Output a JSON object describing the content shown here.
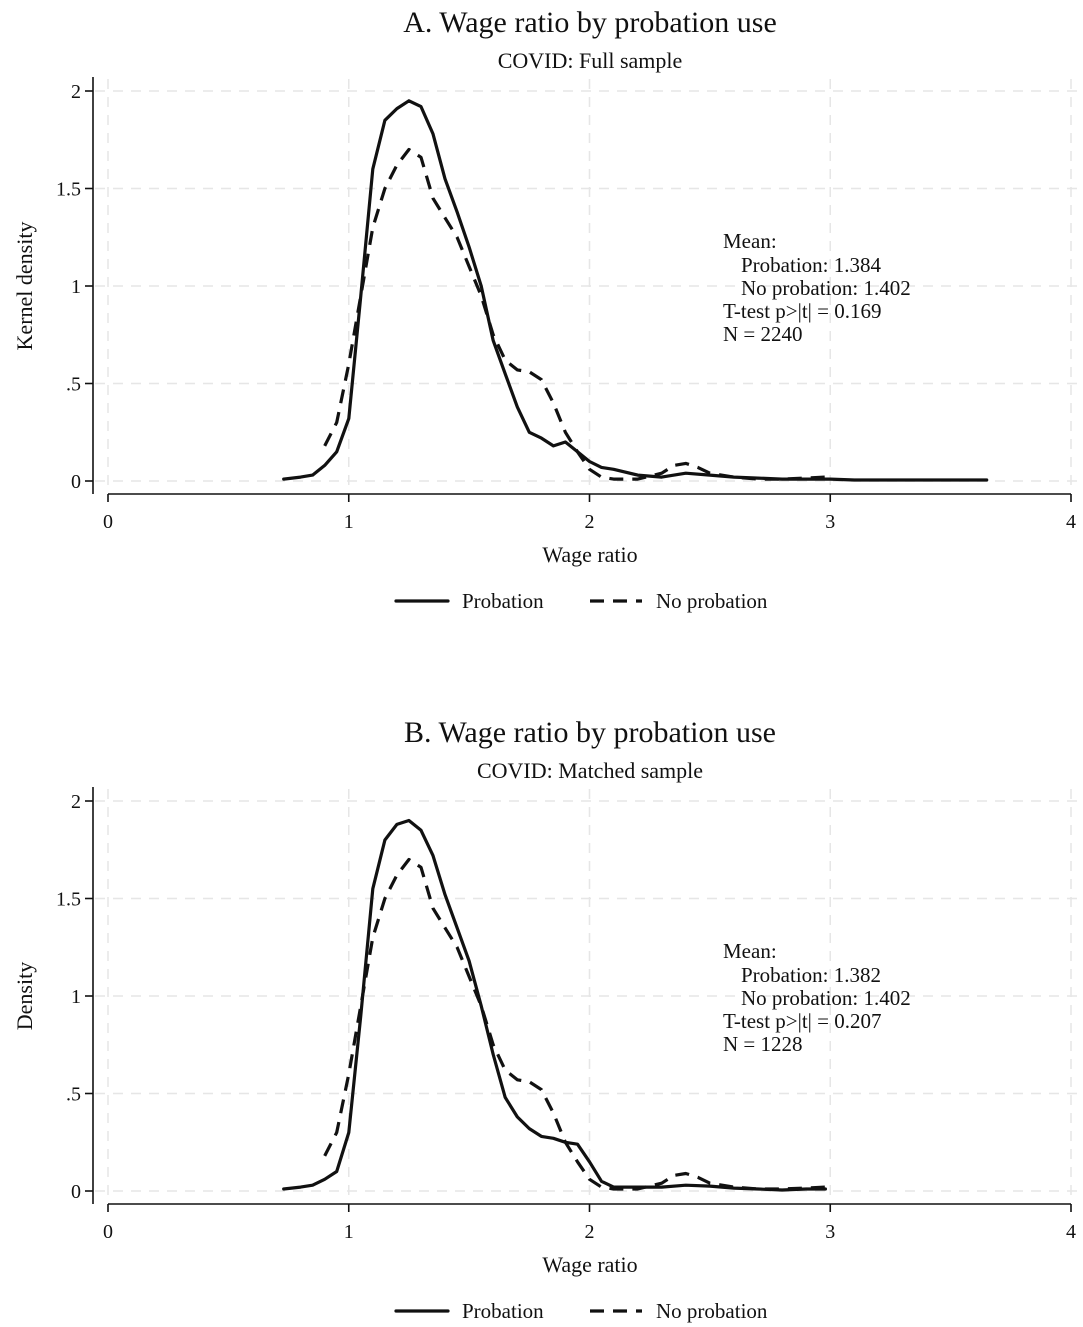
{
  "chart_data": [
    {
      "type": "line",
      "title": "A. Wage ratio by probation use",
      "subtitle": "COVID: Full sample",
      "xlabel": "Wage ratio",
      "ylabel": "Kernel density",
      "xlim": [
        0,
        4
      ],
      "ylim": [
        0,
        2
      ],
      "xticks": [
        0,
        1,
        2,
        3,
        4
      ],
      "xtick_labels": [
        "0",
        "1",
        "2",
        "3",
        "4"
      ],
      "yticks": [
        0,
        0.5,
        1,
        1.5,
        2
      ],
      "ytick_labels": [
        "0",
        ".5",
        "1",
        "1.5",
        "2"
      ],
      "grid": true,
      "legend": [
        "Probation",
        "No probation"
      ],
      "legend_position": "bottom",
      "annotation": [
        "Mean:",
        "Probation: 1.384",
        "No probation: 1.402",
        "T-test p>|t| = 0.169",
        "N = 2240"
      ],
      "series": [
        {
          "name": "Probation",
          "style": "solid",
          "x": [
            0.73,
            0.8,
            0.85,
            0.9,
            0.95,
            1.0,
            1.05,
            1.1,
            1.15,
            1.2,
            1.25,
            1.3,
            1.35,
            1.4,
            1.45,
            1.5,
            1.55,
            1.6,
            1.65,
            1.7,
            1.75,
            1.8,
            1.85,
            1.9,
            1.95,
            2.0,
            2.05,
            2.1,
            2.2,
            2.3,
            2.4,
            2.5,
            2.6,
            2.7,
            2.8,
            2.9,
            3.0,
            3.1,
            3.3,
            3.5,
            3.65
          ],
          "y": [
            0.01,
            0.02,
            0.03,
            0.08,
            0.15,
            0.32,
            0.95,
            1.6,
            1.85,
            1.91,
            1.95,
            1.92,
            1.78,
            1.55,
            1.38,
            1.2,
            1.0,
            0.72,
            0.55,
            0.38,
            0.25,
            0.22,
            0.18,
            0.2,
            0.15,
            0.1,
            0.07,
            0.06,
            0.03,
            0.02,
            0.04,
            0.03,
            0.02,
            0.015,
            0.01,
            0.01,
            0.01,
            0.005,
            0.005,
            0.005,
            0.005
          ]
        },
        {
          "name": "No probation",
          "style": "dashed",
          "x": [
            0.9,
            0.95,
            1.0,
            1.05,
            1.1,
            1.15,
            1.2,
            1.25,
            1.3,
            1.35,
            1.4,
            1.45,
            1.5,
            1.55,
            1.6,
            1.65,
            1.7,
            1.75,
            1.8,
            1.85,
            1.9,
            1.95,
            2.0,
            2.05,
            2.1,
            2.2,
            2.3,
            2.35,
            2.4,
            2.45,
            2.5,
            2.6,
            2.7,
            2.8,
            2.9,
            2.98
          ],
          "y": [
            0.18,
            0.3,
            0.6,
            0.95,
            1.3,
            1.5,
            1.62,
            1.7,
            1.66,
            1.45,
            1.35,
            1.25,
            1.1,
            0.95,
            0.75,
            0.62,
            0.57,
            0.56,
            0.52,
            0.4,
            0.25,
            0.15,
            0.06,
            0.02,
            0.01,
            0.01,
            0.04,
            0.08,
            0.09,
            0.07,
            0.04,
            0.02,
            0.01,
            0.01,
            0.015,
            0.02
          ]
        }
      ]
    },
    {
      "type": "line",
      "title": "B. Wage ratio by probation use",
      "subtitle": "COVID: Matched sample",
      "xlabel": "Wage ratio",
      "ylabel": "Density",
      "xlim": [
        0,
        4
      ],
      "ylim": [
        0,
        2
      ],
      "xticks": [
        0,
        1,
        2,
        3,
        4
      ],
      "xtick_labels": [
        "0",
        "1",
        "2",
        "3",
        "4"
      ],
      "yticks": [
        0,
        0.5,
        1,
        1.5,
        2
      ],
      "ytick_labels": [
        "0",
        ".5",
        "1",
        "1.5",
        "2"
      ],
      "grid": true,
      "legend": [
        "Probation",
        "No probation"
      ],
      "legend_position": "bottom",
      "annotation": [
        "Mean:",
        "Probation: 1.382",
        "No probation: 1.402",
        "T-test p>|t| = 0.207",
        "N = 1228"
      ],
      "series": [
        {
          "name": "Probation",
          "style": "solid",
          "x": [
            0.73,
            0.8,
            0.85,
            0.9,
            0.95,
            1.0,
            1.05,
            1.1,
            1.15,
            1.2,
            1.25,
            1.3,
            1.35,
            1.4,
            1.45,
            1.5,
            1.55,
            1.6,
            1.65,
            1.7,
            1.75,
            1.8,
            1.85,
            1.9,
            1.95,
            2.0,
            2.05,
            2.1,
            2.2,
            2.3,
            2.4,
            2.5,
            2.6,
            2.7,
            2.8,
            2.9,
            2.98
          ],
          "y": [
            0.01,
            0.02,
            0.03,
            0.06,
            0.1,
            0.3,
            0.9,
            1.55,
            1.8,
            1.88,
            1.9,
            1.85,
            1.72,
            1.52,
            1.35,
            1.18,
            0.95,
            0.7,
            0.48,
            0.38,
            0.32,
            0.28,
            0.27,
            0.25,
            0.24,
            0.15,
            0.05,
            0.02,
            0.02,
            0.02,
            0.03,
            0.025,
            0.015,
            0.01,
            0.005,
            0.01,
            0.01
          ]
        },
        {
          "name": "No probation",
          "style": "dashed",
          "x": [
            0.9,
            0.95,
            1.0,
            1.05,
            1.1,
            1.15,
            1.2,
            1.25,
            1.3,
            1.35,
            1.4,
            1.45,
            1.5,
            1.55,
            1.6,
            1.65,
            1.7,
            1.75,
            1.8,
            1.85,
            1.9,
            1.95,
            2.0,
            2.05,
            2.1,
            2.2,
            2.3,
            2.35,
            2.4,
            2.45,
            2.5,
            2.6,
            2.7,
            2.8,
            2.9,
            2.98
          ],
          "y": [
            0.18,
            0.3,
            0.6,
            0.95,
            1.3,
            1.5,
            1.62,
            1.7,
            1.66,
            1.45,
            1.35,
            1.25,
            1.1,
            0.95,
            0.75,
            0.62,
            0.57,
            0.56,
            0.52,
            0.4,
            0.25,
            0.15,
            0.06,
            0.02,
            0.01,
            0.01,
            0.04,
            0.08,
            0.09,
            0.07,
            0.04,
            0.02,
            0.01,
            0.01,
            0.015,
            0.02
          ]
        }
      ]
    }
  ]
}
